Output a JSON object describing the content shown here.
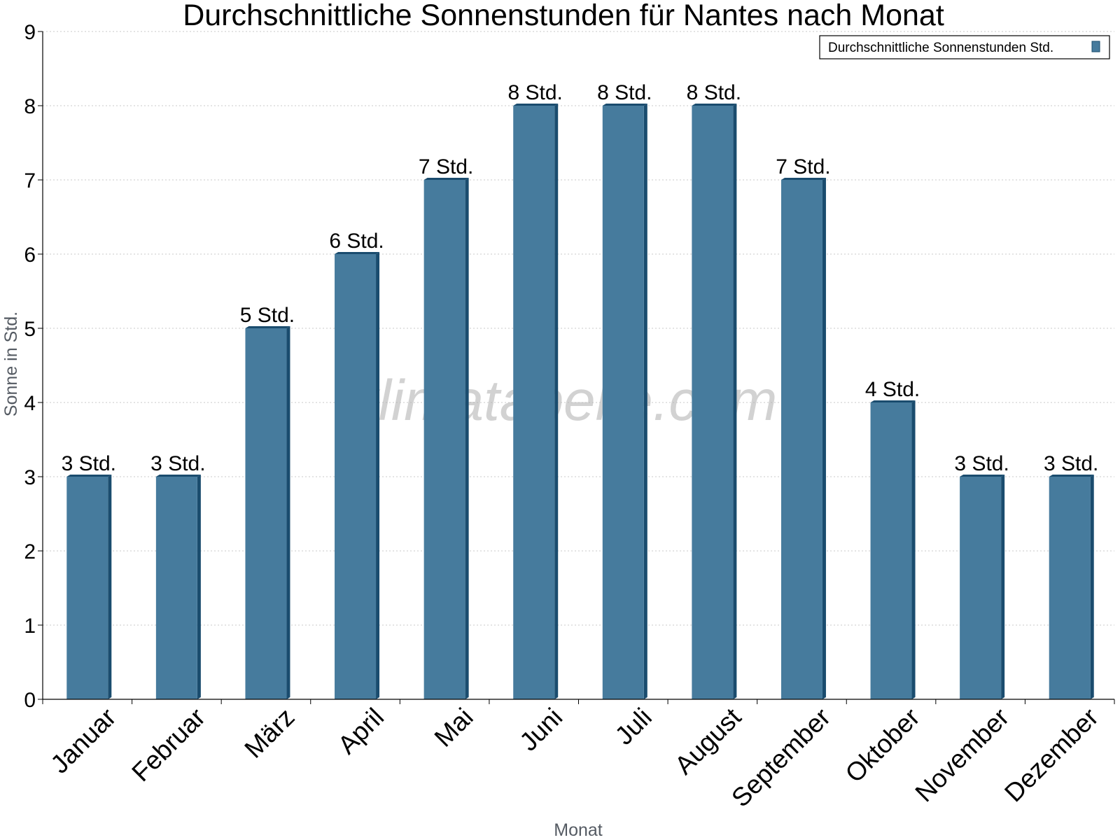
{
  "chart_data": {
    "type": "bar",
    "title": "Durchschnittliche Sonnenstunden für Nantes nach Monat",
    "xlabel": "Monat",
    "ylabel": "Sonne in Std.",
    "categories": [
      "Januar",
      "Februar",
      "März",
      "April",
      "Mai",
      "Juni",
      "Juli",
      "August",
      "September",
      "Oktober",
      "November",
      "Dezember"
    ],
    "series": [
      {
        "name": "Durchschnittliche Sonnenstunden Std.",
        "values": [
          3,
          3,
          5,
          6,
          7,
          8,
          8,
          8,
          7,
          4,
          3,
          3
        ],
        "labels": [
          "3 Std.",
          "3 Std.",
          "5 Std.",
          "6 Std.",
          "7 Std.",
          "8 Std.",
          "8 Std.",
          "8 Std.",
          "7 Std.",
          "4 Std.",
          "3 Std.",
          "3 Std."
        ],
        "color": "#467b9d",
        "edge_color": "#1a4c6e"
      }
    ],
    "ylim": [
      0,
      9
    ],
    "yticks": [
      "0",
      "1",
      "2",
      "3",
      "4",
      "5",
      "6",
      "7",
      "8",
      "9"
    ],
    "grid": true,
    "legend_position": "top-right",
    "watermark": "klimatabelle.com"
  }
}
